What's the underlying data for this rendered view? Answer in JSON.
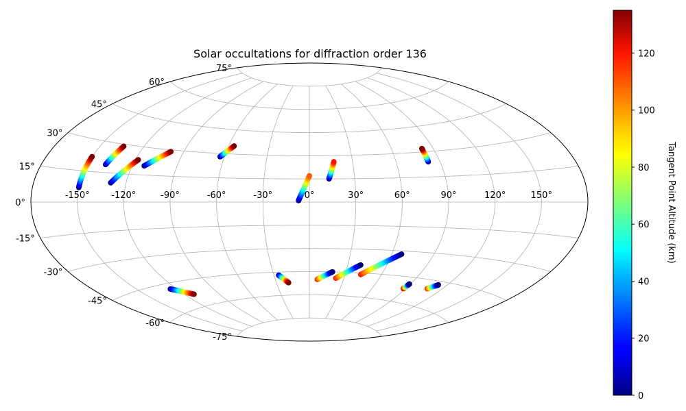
{
  "chart_data": {
    "type": "scatter",
    "projection": "aitoff",
    "title": "Solar occultations for diffraction order 136",
    "xlabel": "",
    "ylabel": "",
    "grid": true,
    "lon_tick_labels": [
      "-150°",
      "-120°",
      "-90°",
      "-60°",
      "-30°",
      "0°",
      "30°",
      "60°",
      "90°",
      "120°",
      "150°"
    ],
    "lat_tick_labels": [
      "75°",
      "60°",
      "45°",
      "30°",
      "15°",
      "0°",
      "-15°",
      "-30°",
      "-45°",
      "-60°",
      "-75°"
    ],
    "colorbar": {
      "label": "Tangent Point Altitude (km)",
      "colormap": "jet",
      "range": [
        0,
        135
      ],
      "ticks": [
        "0",
        "20",
        "40",
        "60",
        "80",
        "100",
        "120"
      ]
    },
    "c_units": "km",
    "tracks": [
      {
        "lon_start": -150,
        "lat_start": 7,
        "alt_start": 0,
        "lon_end": -150,
        "lat_end": 22,
        "alt_end": 135
      },
      {
        "lon_start": -138,
        "lat_start": 19,
        "alt_start": 0,
        "lon_end": -134,
        "lat_end": 29,
        "alt_end": 135
      },
      {
        "lon_start": -130,
        "lat_start": 10,
        "alt_start": 0,
        "lon_end": -118,
        "lat_end": 23,
        "alt_end": 135
      },
      {
        "lon_start": -112,
        "lat_start": 20,
        "alt_start": 0,
        "lon_end": -99,
        "lat_end": 29,
        "alt_end": 135
      },
      {
        "lon_start": -63,
        "lat_start": 28,
        "alt_start": 0,
        "lon_end": -56,
        "lat_end": 35,
        "alt_end": 135
      },
      {
        "lon_start": -7,
        "lat_start": 1,
        "alt_start": 0,
        "lon_end": 0,
        "lat_end": 17,
        "alt_end": 110
      },
      {
        "lon_start": 13,
        "lat_start": 15,
        "alt_start": 0,
        "lon_end": 17,
        "lat_end": 26,
        "alt_end": 120
      },
      {
        "lon_start": 82,
        "lat_start": 24,
        "alt_start": 0,
        "lon_end": 82,
        "lat_end": 32,
        "alt_end": 135
      },
      {
        "lon_start": -125,
        "lat_start": -48,
        "alt_start": 0,
        "lon_end": -112,
        "lat_end": -53,
        "alt_end": 135
      },
      {
        "lon_start": -26,
        "lat_start": -47,
        "alt_start": 0,
        "lon_end": -19,
        "lat_end": -52,
        "alt_end": 135
      },
      {
        "lon_start": 7,
        "lat_start": -50,
        "alt_start": 120,
        "lon_end": 19,
        "lat_end": -45,
        "alt_end": 0
      },
      {
        "lon_start": 23,
        "lat_start": -49,
        "alt_start": 120,
        "lon_end": 40,
        "lat_end": -40,
        "alt_end": 0
      },
      {
        "lon_start": 43,
        "lat_start": -46,
        "alt_start": 120,
        "lon_end": 67,
        "lat_end": -32,
        "alt_end": 0
      },
      {
        "lon_start": 88,
        "lat_start": -52,
        "alt_start": 135,
        "lon_end": 89,
        "lat_end": -49,
        "alt_end": 0
      },
      {
        "lon_start": 108,
        "lat_start": -50,
        "alt_start": 120,
        "lon_end": 113,
        "lat_end": -47,
        "alt_end": 0
      }
    ]
  }
}
